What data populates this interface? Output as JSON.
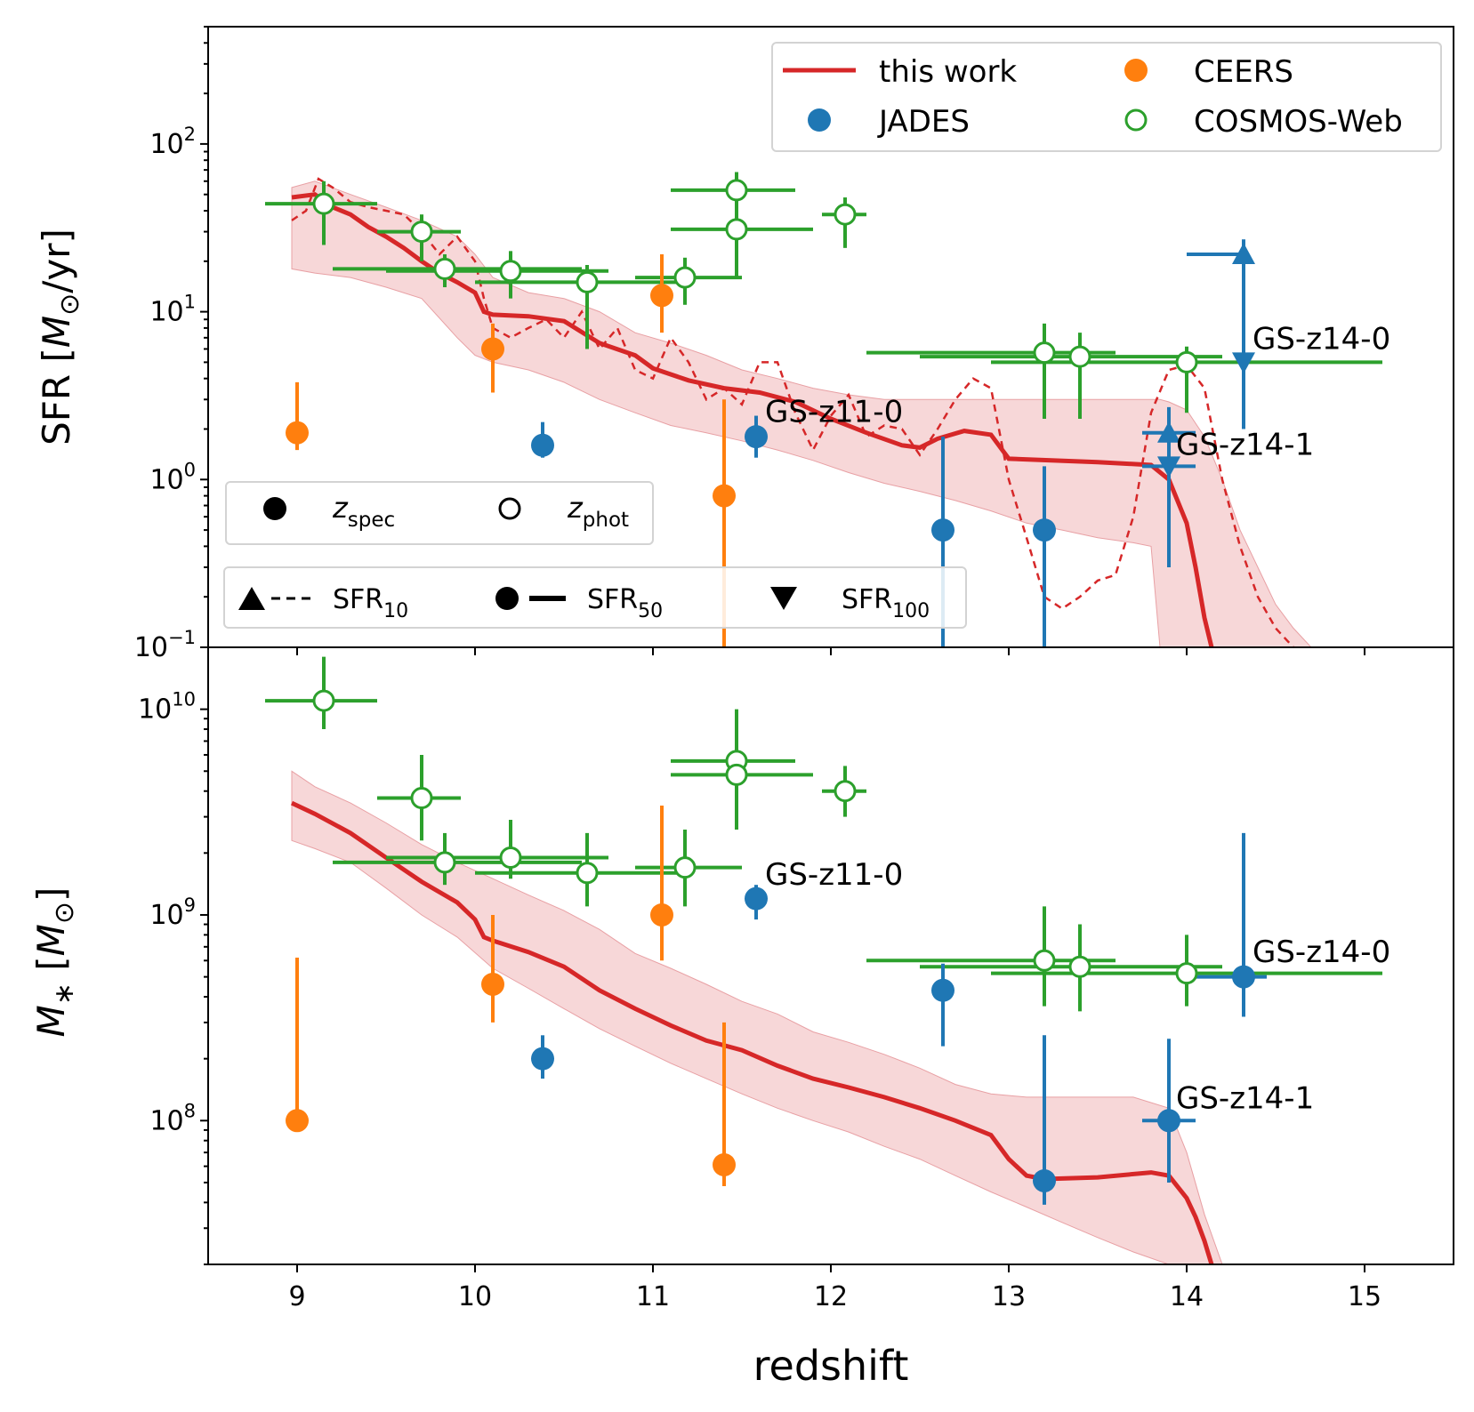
{
  "figure": {
    "xlabel": "redshift",
    "x_ticks": [
      9,
      10,
      11,
      12,
      13,
      14,
      15
    ],
    "x_tick_labels": [
      "9",
      "10",
      "11",
      "12",
      "13",
      "14",
      "15"
    ],
    "xlim": [
      8.5,
      15.5
    ]
  },
  "colors": {
    "this_work": "#d62728",
    "band": "#f4c6c8",
    "jades": "#1f77b4",
    "ceers": "#ff7f0e",
    "cosmos": "#2ca02c"
  },
  "legend": {
    "this_work": "this work",
    "jades": "JADES",
    "ceers": "CEERS",
    "cosmos": "COSMOS-Web",
    "zspec": "z",
    "zspec_sub": "spec",
    "zphot": "z",
    "zphot_sub": "phot",
    "sfr_base": "SFR",
    "sfr10_sub": "10",
    "sfr50_sub": "50",
    "sfr100_sub": "100"
  },
  "chart_data": [
    {
      "type": "line",
      "panel": "top",
      "ylabel": "SFR [M⊙/yr]",
      "ylabel_parts": [
        "SFR [",
        "M",
        "⊙",
        "/yr]"
      ],
      "yscale": "log",
      "ylim": [
        0.1,
        500
      ],
      "y_ticks": [
        0.1,
        1,
        10,
        100
      ],
      "y_tick_labels": [
        {
          "base": "10",
          "exp": "−1"
        },
        {
          "base": "10",
          "exp": "0"
        },
        {
          "base": "10",
          "exp": "1"
        },
        {
          "base": "10",
          "exp": "2"
        }
      ],
      "this_work_sfr50": {
        "x": [
          8.97,
          9.1,
          9.2,
          9.3,
          9.4,
          9.5,
          9.6,
          9.7,
          9.8,
          9.9,
          10.0,
          10.05,
          10.1,
          10.3,
          10.5,
          10.7,
          10.9,
          11.0,
          11.2,
          11.4,
          11.6,
          11.8,
          12.0,
          12.2,
          12.4,
          12.5,
          12.6,
          12.75,
          12.9,
          13.0,
          13.5,
          13.8,
          13.9,
          14.0,
          14.05,
          14.1,
          14.14
        ],
        "y": [
          48,
          50,
          42,
          38,
          32,
          28,
          24,
          20,
          17,
          15,
          13,
          10,
          9.6,
          9.4,
          8.8,
          6.5,
          5.5,
          4.6,
          3.9,
          3.5,
          3.3,
          2.9,
          2.3,
          1.9,
          1.6,
          1.55,
          1.75,
          1.95,
          1.85,
          1.33,
          1.27,
          1.22,
          1.0,
          0.55,
          0.3,
          0.15,
          0.1
        ]
      },
      "this_work_sfr10": {
        "x": [
          8.97,
          9.05,
          9.12,
          9.2,
          9.3,
          9.4,
          9.5,
          9.6,
          9.7,
          9.8,
          9.9,
          10.0,
          10.05,
          10.1,
          10.2,
          10.3,
          10.4,
          10.5,
          10.6,
          10.7,
          10.8,
          10.9,
          11.0,
          11.1,
          11.2,
          11.3,
          11.4,
          11.5,
          11.6,
          11.7,
          11.8,
          11.9,
          12.0,
          12.1,
          12.2,
          12.3,
          12.4,
          12.5,
          12.6,
          12.7,
          12.8,
          12.9,
          13.0,
          13.1,
          13.2,
          13.3,
          13.4,
          13.5,
          13.6,
          13.7,
          13.8,
          13.9,
          14.0,
          14.1,
          14.2,
          14.3,
          14.4,
          14.5,
          14.6
        ],
        "y": [
          35,
          40,
          62,
          55,
          45,
          42,
          40,
          38,
          30,
          22,
          28,
          20,
          12,
          8,
          7,
          8,
          9,
          7,
          10,
          6,
          8,
          4.5,
          4,
          7,
          5,
          3,
          3.5,
          2.8,
          5,
          5,
          2.5,
          1.5,
          2.4,
          3.2,
          1.8,
          2.1,
          2.0,
          1.4,
          2.0,
          3.0,
          4.0,
          3.5,
          1.0,
          0.45,
          0.2,
          0.17,
          0.2,
          0.25,
          0.27,
          0.6,
          2.5,
          4.5,
          4.8,
          3.5,
          1.0,
          0.4,
          0.2,
          0.13,
          0.1
        ]
      },
      "this_work_band": {
        "x": [
          8.97,
          9.1,
          9.3,
          9.5,
          9.7,
          9.9,
          10.0,
          10.1,
          10.3,
          10.5,
          10.7,
          10.9,
          11.1,
          11.3,
          11.5,
          11.7,
          11.9,
          12.1,
          12.3,
          12.5,
          12.7,
          12.9,
          13.1,
          13.3,
          13.5,
          13.7,
          13.8,
          13.85,
          13.9,
          14.0,
          14.1,
          14.2,
          14.3,
          14.4,
          14.5,
          14.6,
          14.7
        ],
        "lower": [
          18,
          17,
          16,
          14,
          12,
          7,
          5.5,
          5.0,
          4.5,
          3.8,
          3.0,
          2.5,
          2.1,
          1.9,
          1.7,
          1.5,
          1.3,
          1.1,
          0.95,
          0.85,
          0.75,
          0.65,
          0.55,
          0.5,
          0.45,
          0.42,
          0.4,
          0.1,
          0.1,
          0.1,
          0.1,
          0.1,
          0.1,
          0.1,
          0.1,
          0.1,
          0.1
        ],
        "upper": [
          55,
          60,
          50,
          42,
          35,
          28,
          22,
          16,
          13,
          12,
          10,
          7.5,
          6.5,
          5.5,
          4.5,
          4.0,
          3.5,
          3.2,
          3.0,
          3.0,
          3.0,
          3.0,
          3.0,
          3.0,
          3.0,
          3.0,
          3.0,
          3.0,
          2.9,
          2.6,
          1.8,
          1.0,
          0.5,
          0.3,
          0.18,
          0.13,
          0.1
        ]
      },
      "jades": [
        {
          "x": 10.38,
          "y": 1.6,
          "yerr": [
            1.35,
            2.2
          ],
          "marker": "circle"
        },
        {
          "x": 11.58,
          "y": 1.8,
          "yerr": [
            1.35,
            2.4
          ],
          "marker": "circle"
        },
        {
          "x": 12.63,
          "y": 0.5,
          "yerr": [
            0.1,
            1.8
          ],
          "marker": "circle"
        },
        {
          "x": 13.2,
          "y": 0.5,
          "yerr": [
            0.1,
            1.2
          ],
          "marker": "circle"
        },
        {
          "x": 14.32,
          "y": 22,
          "yerr": [
            14,
            27
          ],
          "xerr": [
            14.0,
            14.32
          ],
          "marker": "triangle-up"
        },
        {
          "x": 14.32,
          "y": 5,
          "yerr": [
            2.0,
            14
          ],
          "marker": "triangle-down"
        },
        {
          "x": 13.9,
          "y": 1.9,
          "yerr": [
            1.2,
            2.7
          ],
          "xerr": [
            13.75,
            14.05
          ],
          "marker": "triangle-up"
        },
        {
          "x": 13.9,
          "y": 1.2,
          "yerr": [
            0.3,
            1.9
          ],
          "xerr": [
            13.75,
            14.05
          ],
          "marker": "triangle-down"
        }
      ],
      "ceers": [
        {
          "x": 9.0,
          "y": 1.9,
          "yerr": [
            1.5,
            3.8
          ]
        },
        {
          "x": 10.1,
          "y": 6.0,
          "yerr": [
            3.3,
            8.5
          ]
        },
        {
          "x": 11.05,
          "y": 12.5,
          "yerr": [
            7.5,
            22
          ]
        },
        {
          "x": 11.4,
          "y": 0.8,
          "yerr": [
            0.1,
            3.0
          ]
        }
      ],
      "cosmos": [
        {
          "x": 9.15,
          "y": 44,
          "xerr": [
            8.82,
            9.45
          ],
          "yerr": [
            25,
            60
          ]
        },
        {
          "x": 9.7,
          "y": 30,
          "xerr": [
            9.45,
            9.92
          ],
          "yerr": [
            20,
            38
          ]
        },
        {
          "x": 9.83,
          "y": 18,
          "xerr": [
            9.2,
            10.6
          ],
          "yerr": [
            14,
            22
          ]
        },
        {
          "x": 10.2,
          "y": 17.5,
          "xerr": [
            9.5,
            10.75
          ],
          "yerr": [
            12,
            23
          ]
        },
        {
          "x": 10.63,
          "y": 15,
          "xerr": [
            10.0,
            11.2
          ],
          "yerr": [
            6,
            19
          ]
        },
        {
          "x": 11.18,
          "y": 16,
          "xerr": [
            10.9,
            11.5
          ],
          "yerr": [
            11,
            21
          ]
        },
        {
          "x": 11.47,
          "y": 53,
          "xerr": [
            11.1,
            11.8
          ],
          "yerr": [
            40,
            68
          ]
        },
        {
          "x": 11.47,
          "y": 31,
          "xerr": [
            11.1,
            11.9
          ],
          "yerr": [
            16,
            40
          ]
        },
        {
          "x": 12.08,
          "y": 38,
          "xerr": [
            11.95,
            12.2
          ],
          "yerr": [
            24,
            48
          ]
        },
        {
          "x": 13.2,
          "y": 5.7,
          "xerr": [
            12.2,
            13.6
          ],
          "yerr": [
            2.3,
            8.5
          ]
        },
        {
          "x": 13.4,
          "y": 5.4,
          "xerr": [
            12.5,
            14.2
          ],
          "yerr": [
            2.3,
            7.5
          ]
        },
        {
          "x": 14.0,
          "y": 5.0,
          "xerr": [
            12.9,
            15.1
          ],
          "yerr": [
            2.5,
            6.2
          ]
        }
      ],
      "annotations": [
        {
          "text": "GS-z11-0",
          "x": 11.63,
          "y": 2.2
        },
        {
          "text": "GS-z14-0",
          "x": 14.37,
          "y": 6.0
        },
        {
          "text": "GS-z14-1",
          "x": 13.94,
          "y": 1.4
        }
      ]
    },
    {
      "type": "line",
      "panel": "bottom",
      "ylabel": "M* [M⊙]",
      "ylabel_parts": [
        "M",
        "∗",
        " [",
        "M",
        "⊙",
        "]"
      ],
      "yscale": "log",
      "ylim": [
        20000000.0,
        20000000000.0
      ],
      "y_ticks": [
        100000000.0,
        1000000000.0,
        10000000000.0
      ],
      "y_tick_labels": [
        {
          "base": "10",
          "exp": "8"
        },
        {
          "base": "10",
          "exp": "9"
        },
        {
          "base": "10",
          "exp": "10"
        }
      ],
      "this_work": {
        "x": [
          8.97,
          9.1,
          9.3,
          9.5,
          9.7,
          9.9,
          10.0,
          10.05,
          10.1,
          10.3,
          10.5,
          10.7,
          10.9,
          11.1,
          11.3,
          11.5,
          11.7,
          11.9,
          12.1,
          12.3,
          12.5,
          12.7,
          12.9,
          13.0,
          13.1,
          13.2,
          13.5,
          13.8,
          13.9,
          14.0,
          14.05,
          14.1,
          14.14
        ],
        "y": [
          3500000000.0,
          3100000000.0,
          2500000000.0,
          1900000000.0,
          1450000000.0,
          1150000000.0,
          950000000.0,
          780000000.0,
          750000000.0,
          660000000.0,
          560000000.0,
          430000000.0,
          350000000.0,
          290000000.0,
          245000000.0,
          220000000.0,
          185000000.0,
          160000000.0,
          145000000.0,
          130000000.0,
          115000000.0,
          100000000.0,
          85000000.0,
          65000000.0,
          54000000.0,
          52000000.0,
          53000000.0,
          56000000.0,
          54000000.0,
          42000000.0,
          34000000.0,
          26000000.0,
          20000000.0
        ]
      },
      "this_work_band": {
        "x": [
          8.97,
          9.1,
          9.3,
          9.5,
          9.7,
          9.9,
          10.1,
          10.3,
          10.5,
          10.7,
          10.9,
          11.1,
          11.3,
          11.5,
          11.7,
          11.9,
          12.1,
          12.3,
          12.5,
          12.7,
          12.9,
          13.1,
          13.3,
          13.5,
          13.7,
          13.9,
          14.0,
          14.1,
          14.2
        ],
        "lower": [
          2300000000.0,
          2100000000.0,
          1800000000.0,
          1350000000.0,
          1000000000.0,
          780000000.0,
          550000000.0,
          440000000.0,
          350000000.0,
          280000000.0,
          230000000.0,
          190000000.0,
          160000000.0,
          135000000.0,
          115000000.0,
          100000000.0,
          88000000.0,
          75000000.0,
          65000000.0,
          54000000.0,
          45000000.0,
          38000000.0,
          32000000.0,
          27000000.0,
          23000000.0,
          20000000.0,
          20000000.0,
          20000000.0,
          20000000.0
        ],
        "upper": [
          5000000000.0,
          4200000000.0,
          3500000000.0,
          2800000000.0,
          2200000000.0,
          1800000000.0,
          1500000000.0,
          1250000000.0,
          1050000000.0,
          850000000.0,
          650000000.0,
          550000000.0,
          460000000.0,
          380000000.0,
          330000000.0,
          270000000.0,
          240000000.0,
          210000000.0,
          180000000.0,
          150000000.0,
          135000000.0,
          130000000.0,
          130000000.0,
          130000000.0,
          130000000.0,
          115000000.0,
          70000000.0,
          35000000.0,
          20000000.0
        ]
      },
      "jades": [
        {
          "x": 10.38,
          "y": 200000000.0,
          "yerr": [
            160000000.0,
            260000000.0
          ]
        },
        {
          "x": 11.58,
          "y": 1200000000.0,
          "yerr": [
            950000000.0,
            1400000000.0
          ]
        },
        {
          "x": 12.63,
          "y": 430000000.0,
          "yerr": [
            230000000.0,
            580000000.0
          ]
        },
        {
          "x": 13.2,
          "y": 51000000.0,
          "yerr": [
            39000000.0,
            260000000.0
          ]
        },
        {
          "x": 14.32,
          "y": 500000000.0,
          "yerr": [
            320000000.0,
            2500000000.0
          ],
          "xerr": [
            13.95,
            14.45
          ]
        },
        {
          "x": 13.9,
          "y": 100000000.0,
          "yerr": [
            50000000.0,
            250000000.0
          ],
          "xerr": [
            13.75,
            14.05
          ]
        }
      ],
      "ceers": [
        {
          "x": 9.0,
          "y": 100000000.0,
          "yerr": [
            100000000.0,
            620000000.0
          ]
        },
        {
          "x": 10.1,
          "y": 460000000.0,
          "yerr": [
            300000000.0,
            1000000000.0
          ]
        },
        {
          "x": 11.05,
          "y": 1000000000.0,
          "yerr": [
            600000000.0,
            3400000000.0
          ]
        },
        {
          "x": 11.4,
          "y": 61000000.0,
          "yerr": [
            48000000.0,
            300000000.0
          ]
        }
      ],
      "cosmos": [
        {
          "x": 9.15,
          "y": 11000000000.0,
          "xerr": [
            8.82,
            9.45
          ],
          "yerr": [
            8000000000.0,
            18000000000.0
          ]
        },
        {
          "x": 9.7,
          "y": 3700000000.0,
          "xerr": [
            9.45,
            9.92
          ],
          "yerr": [
            2300000000.0,
            6000000000.0
          ]
        },
        {
          "x": 9.83,
          "y": 1800000000.0,
          "xerr": [
            9.2,
            10.6
          ],
          "yerr": [
            1400000000.0,
            2500000000.0
          ]
        },
        {
          "x": 10.2,
          "y": 1900000000.0,
          "xerr": [
            9.5,
            10.75
          ],
          "yerr": [
            1500000000.0,
            2900000000.0
          ]
        },
        {
          "x": 10.63,
          "y": 1600000000.0,
          "xerr": [
            10.0,
            11.2
          ],
          "yerr": [
            1100000000.0,
            2500000000.0
          ]
        },
        {
          "x": 11.18,
          "y": 1700000000.0,
          "xerr": [
            10.9,
            11.5
          ],
          "yerr": [
            1100000000.0,
            2600000000.0
          ]
        },
        {
          "x": 11.47,
          "y": 5600000000.0,
          "xerr": [
            11.1,
            11.8
          ],
          "yerr": [
            3400000000.0,
            10000000000.0
          ]
        },
        {
          "x": 11.47,
          "y": 4800000000.0,
          "xerr": [
            11.1,
            11.9
          ],
          "yerr": [
            2600000000.0,
            6000000000.0
          ]
        },
        {
          "x": 12.08,
          "y": 4000000000.0,
          "xerr": [
            11.95,
            12.2
          ],
          "yerr": [
            3000000000.0,
            5300000000.0
          ]
        },
        {
          "x": 13.2,
          "y": 600000000.0,
          "xerr": [
            12.2,
            13.6
          ],
          "yerr": [
            360000000.0,
            1100000000.0
          ]
        },
        {
          "x": 13.4,
          "y": 560000000.0,
          "xerr": [
            12.5,
            14.2
          ],
          "yerr": [
            340000000.0,
            900000000.0
          ]
        },
        {
          "x": 14.0,
          "y": 520000000.0,
          "xerr": [
            12.9,
            15.1
          ],
          "yerr": [
            360000000.0,
            800000000.0
          ]
        }
      ],
      "annotations": [
        {
          "text": "GS-z11-0",
          "x": 11.63,
          "y": 1400000000.0
        },
        {
          "text": "GS-z14-0",
          "x": 14.37,
          "y": 590000000.0
        },
        {
          "text": "GS-z14-1",
          "x": 13.94,
          "y": 115000000.0
        }
      ]
    }
  ]
}
